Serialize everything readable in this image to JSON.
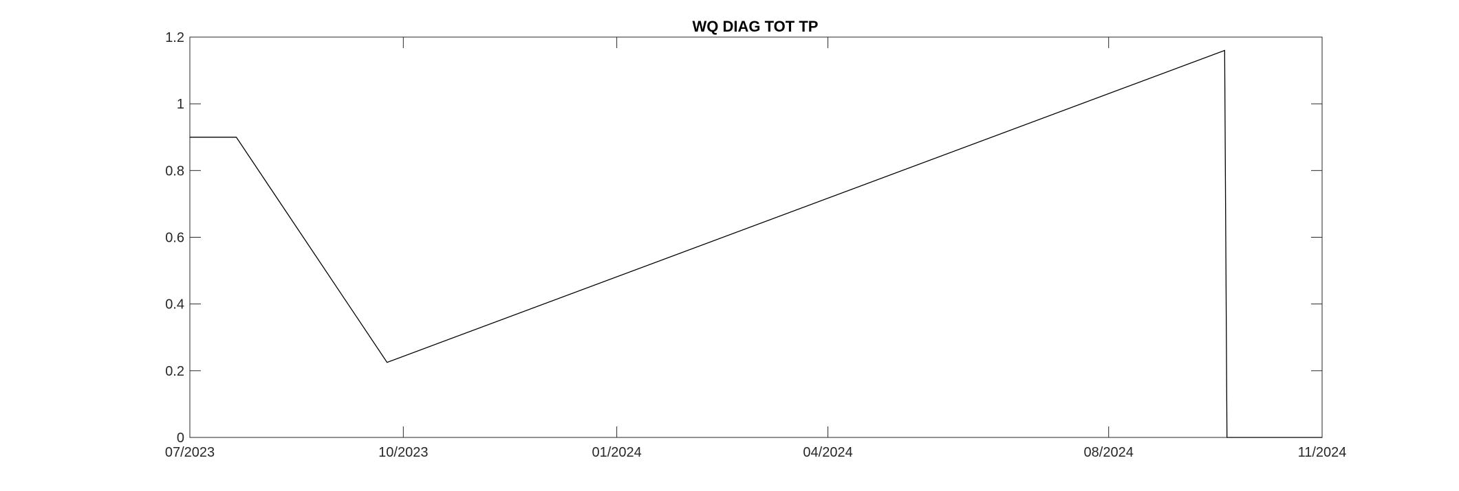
{
  "chart_data": {
    "type": "line",
    "title": "WQ DIAG TOT TP",
    "xlabel": "",
    "ylabel": "",
    "x_ticks": [
      {
        "date": "2023-07-01",
        "label": "07/2023"
      },
      {
        "date": "2023-10-01",
        "label": "10/2023"
      },
      {
        "date": "2024-01-01",
        "label": "01/2024"
      },
      {
        "date": "2024-04-01",
        "label": "04/2024"
      },
      {
        "date": "2024-07-31",
        "label": "08/2024"
      },
      {
        "date": "2024-10-31",
        "label": "11/2024"
      }
    ],
    "xlim": [
      "2023-07-01",
      "2024-10-31"
    ],
    "y_ticks": [
      0,
      0.2,
      0.4,
      0.6,
      0.8,
      1,
      1.2
    ],
    "y_tick_labels": [
      "0",
      "0.2",
      "0.4",
      "0.6",
      "0.8",
      "1",
      "1.2"
    ],
    "ylim": [
      0,
      1.2
    ],
    "grid": false,
    "legend": "none",
    "series": [
      {
        "x": [
          "2023-07-01",
          "2023-07-21",
          "2023-09-24",
          "2024-09-19",
          "2024-09-20",
          "2024-10-31"
        ],
        "y": [
          0.9,
          0.9,
          0.225,
          1.16,
          0,
          0
        ]
      }
    ]
  },
  "colors": {
    "line": "#000000",
    "axes": "#262626",
    "background": "#ffffff"
  }
}
